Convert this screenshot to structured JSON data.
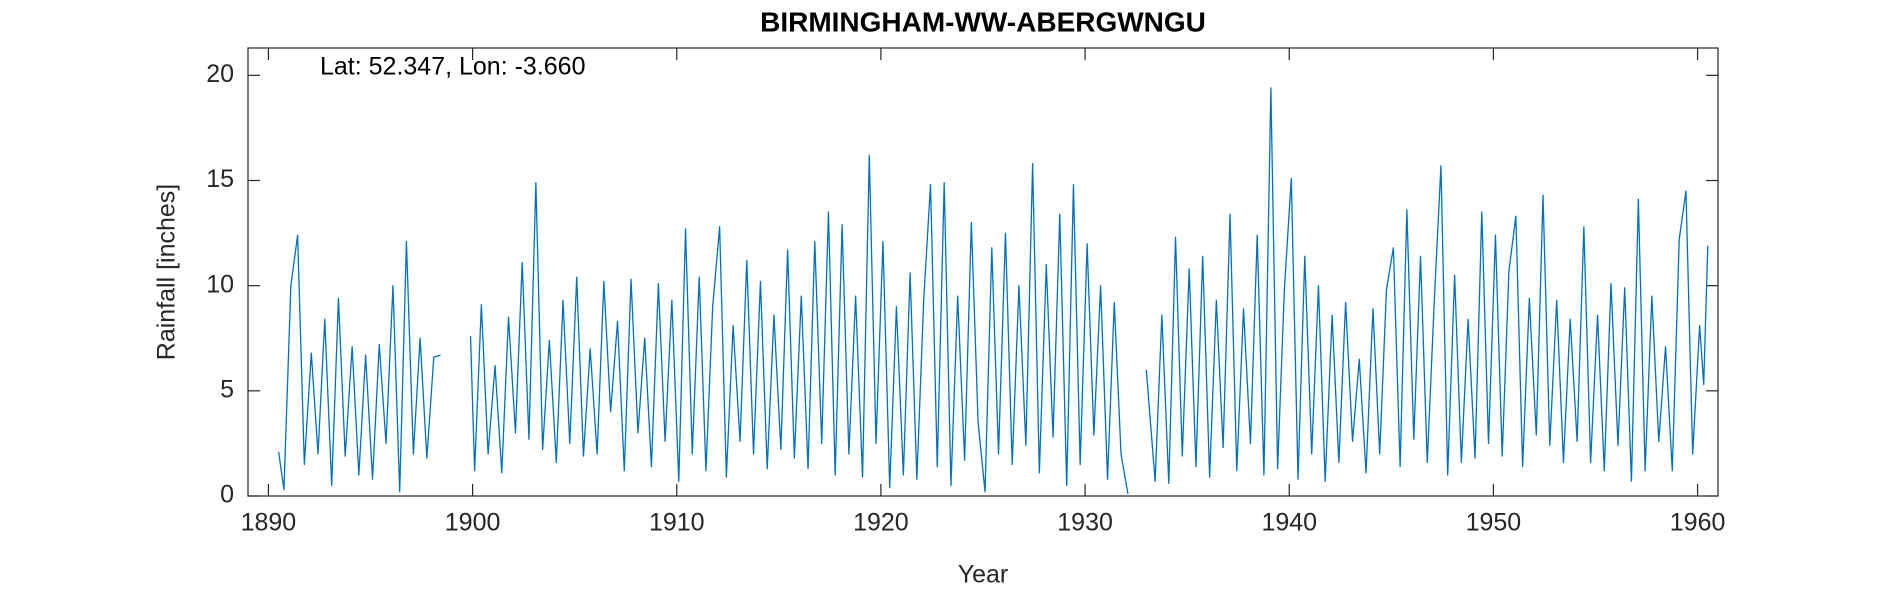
{
  "chart_data": {
    "type": "line",
    "title": "BIRMINGHAM-WW-ABERGWNGU",
    "annotation": "Lat: 52.347, Lon: -3.660",
    "xlabel": "Year",
    "ylabel": "Rainfall [inches]",
    "color": "#0072bd",
    "xlim": [
      1889,
      1961
    ],
    "ylim": [
      0,
      21.3
    ],
    "xticks": [
      1890,
      1900,
      1910,
      1920,
      1930,
      1940,
      1950,
      1960
    ],
    "yticks": [
      0,
      5,
      10,
      15,
      20
    ],
    "x": [
      1890.5,
      1890.76,
      1891.1,
      1891.43,
      1891.76,
      1892.1,
      1892.43,
      1892.76,
      1893.1,
      1893.43,
      1893.76,
      1894.1,
      1894.43,
      1894.76,
      1895.1,
      1895.43,
      1895.76,
      1896.1,
      1896.43,
      1896.76,
      1897.1,
      1897.43,
      1897.76,
      1898.1,
      1898.43,
      1899.1,
      1899.9,
      1900.1,
      1900.43,
      1900.76,
      1901.1,
      1901.43,
      1901.76,
      1902.1,
      1902.43,
      1902.76,
      1903.1,
      1903.43,
      1903.76,
      1904.1,
      1904.43,
      1904.76,
      1905.1,
      1905.43,
      1905.76,
      1906.1,
      1906.43,
      1906.76,
      1907.1,
      1907.43,
      1907.76,
      1908.1,
      1908.43,
      1908.76,
      1909.1,
      1909.43,
      1909.76,
      1910.1,
      1910.43,
      1910.76,
      1911.1,
      1911.43,
      1911.76,
      1912.1,
      1912.43,
      1912.76,
      1913.1,
      1913.43,
      1913.76,
      1914.1,
      1914.43,
      1914.76,
      1915.1,
      1915.43,
      1915.76,
      1916.1,
      1916.43,
      1916.76,
      1917.1,
      1917.43,
      1917.76,
      1918.1,
      1918.43,
      1918.76,
      1919.1,
      1919.43,
      1919.76,
      1920.1,
      1920.43,
      1920.76,
      1921.1,
      1921.43,
      1921.76,
      1922.1,
      1922.43,
      1922.76,
      1923.1,
      1923.43,
      1923.76,
      1924.1,
      1924.43,
      1924.76,
      1925.1,
      1925.43,
      1925.76,
      1926.1,
      1926.43,
      1926.76,
      1927.1,
      1927.43,
      1927.76,
      1928.1,
      1928.43,
      1928.76,
      1929.1,
      1929.43,
      1929.76,
      1930.1,
      1930.43,
      1930.76,
      1931.1,
      1931.43,
      1931.76,
      1932.1,
      1932.6,
      1933.0,
      1933.43,
      1933.76,
      1934.1,
      1934.43,
      1934.76,
      1935.1,
      1935.43,
      1935.76,
      1936.1,
      1936.43,
      1936.76,
      1937.1,
      1937.43,
      1937.76,
      1938.1,
      1938.43,
      1938.76,
      1939.1,
      1939.43,
      1939.76,
      1940.1,
      1940.43,
      1940.76,
      1941.1,
      1941.43,
      1941.76,
      1942.1,
      1942.43,
      1942.76,
      1943.1,
      1943.43,
      1943.76,
      1944.1,
      1944.43,
      1944.76,
      1945.1,
      1945.43,
      1945.76,
      1946.1,
      1946.43,
      1946.76,
      1947.1,
      1947.43,
      1947.76,
      1948.1,
      1948.43,
      1948.76,
      1949.1,
      1949.43,
      1949.76,
      1950.1,
      1950.43,
      1950.76,
      1951.1,
      1951.43,
      1951.76,
      1952.1,
      1952.43,
      1952.76,
      1953.1,
      1953.43,
      1953.76,
      1954.1,
      1954.43,
      1954.76,
      1955.1,
      1955.43,
      1955.76,
      1956.1,
      1956.43,
      1956.76,
      1957.1,
      1957.43,
      1957.76,
      1958.1,
      1958.43,
      1958.76,
      1959.1,
      1959.43,
      1959.76,
      1960.1,
      1960.3,
      1960.5
    ],
    "values": [
      2.1,
      0.3,
      10.0,
      12.4,
      1.5,
      6.8,
      2.0,
      8.4,
      0.5,
      9.4,
      1.9,
      7.1,
      1.0,
      6.7,
      0.8,
      7.2,
      2.5,
      10.0,
      0.2,
      12.1,
      2.0,
      7.5,
      1.8,
      6.6,
      6.7,
      null,
      7.6,
      1.2,
      9.1,
      2.0,
      6.2,
      1.1,
      8.5,
      3.0,
      11.1,
      2.7,
      14.9,
      2.2,
      7.4,
      1.6,
      9.3,
      2.5,
      10.4,
      1.9,
      7.0,
      2.0,
      10.2,
      4.0,
      8.3,
      1.2,
      10.3,
      3.0,
      7.5,
      1.4,
      10.1,
      2.6,
      9.3,
      0.7,
      12.7,
      2.0,
      10.4,
      1.2,
      9.0,
      12.8,
      0.9,
      8.1,
      2.6,
      11.2,
      2.0,
      10.2,
      1.3,
      8.6,
      2.2,
      11.7,
      1.8,
      9.5,
      1.3,
      12.1,
      2.5,
      13.5,
      1.0,
      12.9,
      2.0,
      9.5,
      0.9,
      16.2,
      2.5,
      12.1,
      0.4,
      9.0,
      1.0,
      10.6,
      0.8,
      9.4,
      14.8,
      1.4,
      14.9,
      0.5,
      9.5,
      1.7,
      13.0,
      3.5,
      0.2,
      11.8,
      2.0,
      12.5,
      1.5,
      10.0,
      2.4,
      15.8,
      1.1,
      11.0,
      2.8,
      13.4,
      0.5,
      14.8,
      1.5,
      12.0,
      2.9,
      10.0,
      0.8,
      9.2,
      2.0,
      0.1,
      null,
      6.0,
      0.7,
      8.6,
      0.6,
      12.3,
      1.9,
      10.8,
      1.4,
      11.4,
      0.9,
      9.3,
      2.3,
      13.4,
      1.2,
      8.9,
      2.5,
      12.4,
      1.0,
      19.4,
      1.3,
      9.8,
      15.1,
      0.8,
      11.4,
      2.0,
      10.0,
      0.7,
      8.6,
      1.6,
      9.2,
      2.6,
      6.5,
      1.1,
      8.9,
      2.0,
      9.8,
      11.8,
      1.4,
      13.6,
      2.7,
      11.4,
      1.6,
      9.2,
      15.7,
      1.0,
      10.5,
      1.6,
      8.4,
      1.8,
      13.5,
      2.5,
      12.4,
      1.9,
      10.7,
      13.3,
      1.4,
      9.4,
      2.9,
      14.3,
      2.4,
      9.3,
      1.6,
      8.4,
      2.6,
      12.8,
      1.6,
      8.6,
      1.2,
      10.1,
      2.4,
      9.9,
      0.7,
      14.1,
      1.2,
      9.5,
      2.6,
      7.1,
      1.2,
      12.2,
      14.5,
      2.0,
      8.1,
      5.3,
      11.9
    ]
  }
}
